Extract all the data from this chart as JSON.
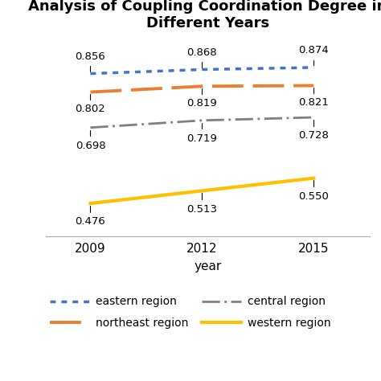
{
  "title": "Analysis of Coupling Coordination Degree in\nDifferent Years",
  "xlabel": "year",
  "years": [
    2009,
    2012,
    2015
  ],
  "eastern": [
    0.856,
    0.868,
    0.874
  ],
  "northeast": [
    0.802,
    0.819,
    0.821
  ],
  "central": [
    0.698,
    0.719,
    0.728
  ],
  "western": [
    0.476,
    0.513,
    0.55
  ],
  "eastern_color": "#4472C4",
  "northeast_color": "#ED7D31",
  "central_color": "#7F7F7F",
  "western_color": "#FFC000",
  "background_color": "#FFFFFF",
  "ylim": [
    0.38,
    0.96
  ],
  "title_fontsize": 13,
  "label_fontsize": 11,
  "annot_fontsize": 9.5,
  "tick_fontsize": 11
}
